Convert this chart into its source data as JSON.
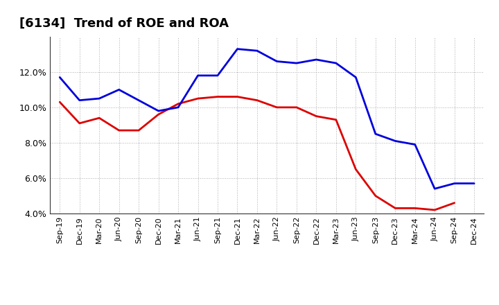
{
  "title": "[6134]  Trend of ROE and ROA",
  "x_labels": [
    "Sep-19",
    "Dec-19",
    "Mar-20",
    "Jun-20",
    "Sep-20",
    "Dec-20",
    "Mar-21",
    "Jun-21",
    "Sep-21",
    "Dec-21",
    "Mar-22",
    "Jun-22",
    "Sep-22",
    "Dec-22",
    "Mar-23",
    "Jun-23",
    "Sep-23",
    "Dec-23",
    "Mar-24",
    "Jun-24",
    "Sep-24",
    "Dec-24"
  ],
  "roe": [
    10.3,
    9.1,
    9.4,
    8.7,
    8.7,
    9.6,
    10.2,
    10.5,
    10.6,
    10.6,
    10.4,
    10.0,
    10.0,
    9.5,
    9.3,
    6.5,
    5.0,
    4.3,
    4.3,
    4.2,
    4.6,
    null
  ],
  "roa": [
    11.7,
    10.4,
    10.5,
    11.0,
    10.4,
    9.8,
    10.0,
    11.8,
    11.8,
    13.3,
    13.2,
    12.6,
    12.5,
    12.7,
    12.5,
    11.7,
    8.5,
    8.1,
    7.9,
    5.4,
    5.7,
    5.7
  ],
  "roe_color": "#dd0000",
  "roa_color": "#0000dd",
  "ylim": [
    4.0,
    14.0
  ],
  "yticks": [
    4.0,
    6.0,
    8.0,
    10.0,
    12.0
  ],
  "background_color": "#ffffff",
  "grid_color": "#999999",
  "title_fontsize": 13,
  "tick_fontsize": 8,
  "ytick_fontsize": 9,
  "legend_fontsize": 10,
  "linewidth": 2.0
}
